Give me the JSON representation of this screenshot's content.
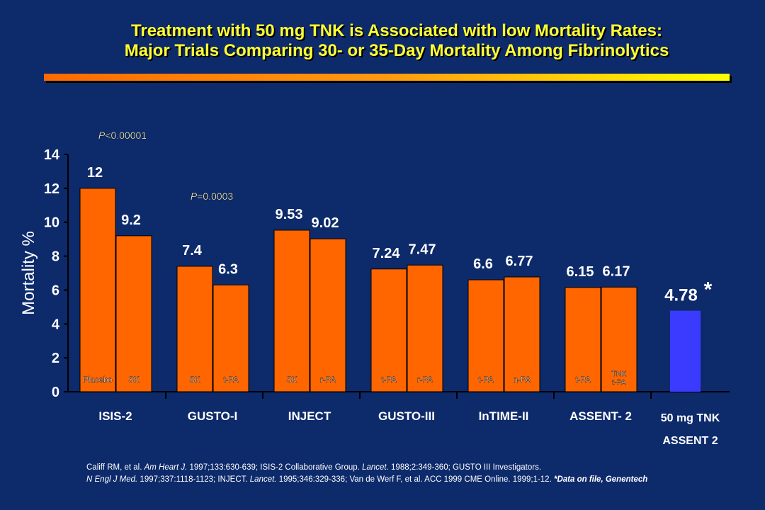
{
  "title_line1": "Treatment with 50 mg TNK is Associated with low Mortality Rates:",
  "title_line2": "Major Trials Comparing 30- or 35-Day Mortality Among Fibrinolytics",
  "chart_data": {
    "type": "bar",
    "ylabel": "Mortality %",
    "ylim": [
      0,
      14
    ],
    "yticks": [
      0,
      2,
      4,
      6,
      8,
      10,
      12,
      14
    ],
    "grid": false,
    "groups": [
      {
        "trial": "ISIS-2",
        "bars": [
          {
            "label": "Placebo",
            "value": 12,
            "value_label": "12"
          },
          {
            "label": "SK",
            "value": 9.2,
            "value_label": "9.2"
          }
        ]
      },
      {
        "trial": "GUSTO-I",
        "bars": [
          {
            "label": "SK",
            "value": 7.4,
            "value_label": "7.4"
          },
          {
            "label": "t-PA",
            "value": 6.3,
            "value_label": "6.3"
          }
        ]
      },
      {
        "trial": "INJECT",
        "bars": [
          {
            "label": "SK",
            "value": 9.53,
            "value_label": "9.53"
          },
          {
            "label": "r-PA",
            "value": 9.02,
            "value_label": "9.02"
          }
        ]
      },
      {
        "trial": "GUSTO-III",
        "bars": [
          {
            "label": "t-PA",
            "value": 7.24,
            "value_label": "7.24"
          },
          {
            "label": "r-PA",
            "value": 7.47,
            "value_label": "7.47"
          }
        ]
      },
      {
        "trial": "InTIME-II",
        "bars": [
          {
            "label": "t-PA",
            "value": 6.6,
            "value_label": "6.6"
          },
          {
            "label": "n-PA",
            "value": 6.77,
            "value_label": "6.77"
          }
        ]
      },
      {
        "trial": "ASSENT- 2",
        "bars": [
          {
            "label": "t-PA",
            "value": 6.15,
            "value_label": "6.15"
          },
          {
            "label": "TNK t-PA",
            "value": 6.17,
            "value_label": "6.17"
          }
        ]
      }
    ],
    "highlight": {
      "value": 4.78,
      "value_label": "4.78",
      "marker": "*",
      "label_line1": "50 mg TNK",
      "label_line2": "ASSENT 2"
    },
    "annotations": [
      {
        "trial": "ISIS-2",
        "text": "P<0.00001"
      },
      {
        "trial": "GUSTO-I",
        "text": "P=0.0003"
      }
    ],
    "colors": {
      "bar": "#ff6600",
      "highlight_bar": "#3b3bff",
      "text": "#ffffff",
      "p_value": "#ffffcc"
    }
  },
  "source": {
    "line1_parts": [
      {
        "t": "Califf RM, et al. ",
        "s": ""
      },
      {
        "t": "Am Heart J.",
        "s": "i"
      },
      {
        "t": " 1997;133:630-639;  ISIS-2 Collaborative Group. ",
        "s": ""
      },
      {
        "t": "Lancet.",
        "s": "i"
      },
      {
        "t": " 1988;2:349-360;  GUSTO III Investigators.",
        "s": ""
      }
    ],
    "line2_parts": [
      {
        "t": "N Engl J Med.",
        "s": "i"
      },
      {
        "t": " 1997;337:1118-1123;  INJECT. ",
        "s": ""
      },
      {
        "t": "Lancet.",
        "s": "i"
      },
      {
        "t": " 1995;346:329-336;  Van de Werf F, et al. ACC 1999 CME Online. 1999;1-12.  ",
        "s": ""
      },
      {
        "t": "*Data on file, Genentech",
        "s": "b"
      }
    ]
  }
}
